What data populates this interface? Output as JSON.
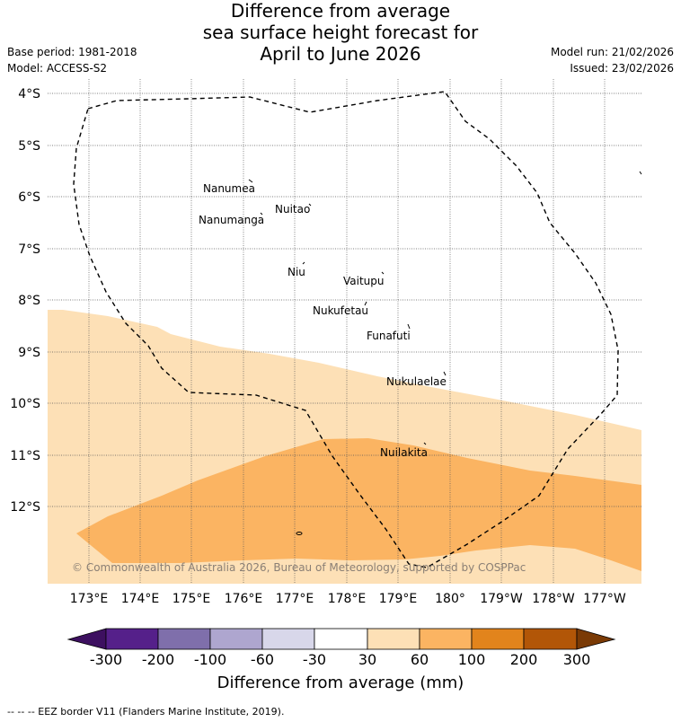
{
  "title": {
    "line1": "Difference from average",
    "line2": "sea surface height forecast for",
    "line3": "April to June 2026"
  },
  "meta": {
    "base_period": "Base period: 1981-2018",
    "model": "Model: ACCESS-S2",
    "model_run": "Model run: 21/02/2026",
    "issued": "Issued: 23/02/2026"
  },
  "map": {
    "lat_labels": [
      "4°S",
      "5°S",
      "6°S",
      "7°S",
      "8°S",
      "9°S",
      "10°S",
      "11°S",
      "12°S"
    ],
    "lon_labels": [
      "173°E",
      "174°E",
      "175°E",
      "176°E",
      "177°E",
      "178°E",
      "179°E",
      "180°",
      "179°W",
      "178°W",
      "177°W"
    ],
    "places": [
      {
        "name": "Nanumea"
      },
      {
        "name": "Nuitao"
      },
      {
        "name": "Nanumanga"
      },
      {
        "name": "Niu"
      },
      {
        "name": "Vaitupu"
      },
      {
        "name": "Nukufetau"
      },
      {
        "name": "Funafuti"
      },
      {
        "name": "Nukulaelae"
      },
      {
        "name": "Nuilakita"
      }
    ],
    "copyright": "© Commonwealth of Australia 2026, Bureau of Meteorology, supported by COSPPac"
  },
  "colorbar": {
    "title": "Difference from average (mm)",
    "labels": [
      "-300",
      "-200",
      "-100",
      "-60",
      "-30",
      "30",
      "60",
      "100",
      "200",
      "300"
    ],
    "colors": [
      "#3d1060",
      "#55208a",
      "#7f6fab",
      "#aea6cf",
      "#d8d7ea",
      "#ffffff",
      "#fde0b6",
      "#fbb462",
      "#e2841c",
      "#b25607",
      "#7a3a05"
    ]
  },
  "legend": {
    "eez": "--  --  -- EEZ border V11 (Flanders Marine Institute, 2019)."
  }
}
